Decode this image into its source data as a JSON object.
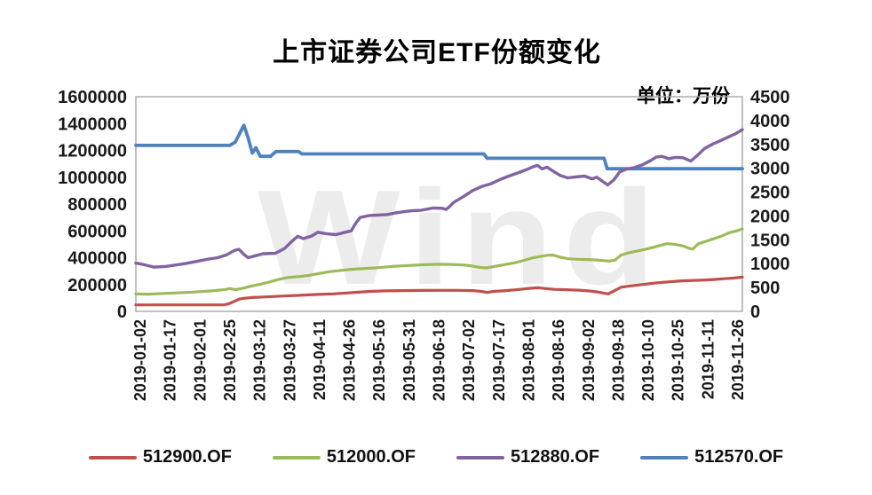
{
  "title": "上市证券公司ETF份额变化",
  "unit_label": "单位：万份",
  "watermark": "Wind",
  "chart_data": {
    "type": "line",
    "title": "上市证券公司ETF份额变化",
    "unit": "万份",
    "grid": false,
    "legend_position": "bottom",
    "x_tick_labels": [
      "2019-01-02",
      "2019-01-17",
      "2019-02-01",
      "2019-02-25",
      "2019-03-12",
      "2019-03-27",
      "2019-04-11",
      "2019-04-26",
      "2019-05-16",
      "2019-05-31",
      "2019-06-18",
      "2019-07-02",
      "2019-07-17",
      "2019-08-01",
      "2019-08-16",
      "2019-09-02",
      "2019-09-18",
      "2019-10-10",
      "2019-10-25",
      "2019-11-11",
      "2019-11-26"
    ],
    "left_axis": {
      "min": 0,
      "max": 1600000,
      "step": 200000,
      "ticks": [
        "0",
        "200000",
        "400000",
        "600000",
        "800000",
        "1000000",
        "1200000",
        "1400000",
        "1600000"
      ]
    },
    "right_axis": {
      "min": 0,
      "max": 4500,
      "step": 500,
      "ticks": [
        "0",
        "500",
        "1000",
        "1500",
        "2000",
        "2500",
        "3000",
        "3500",
        "4000",
        "4500"
      ]
    },
    "series": [
      {
        "name": "512900.OF",
        "color": "#C0504D",
        "axis": "left",
        "draw_order": 1,
        "width": 3.2,
        "points": [
          [
            0,
            48000
          ],
          [
            0.145,
            48000
          ],
          [
            0.153,
            56000
          ],
          [
            0.162,
            74000
          ],
          [
            0.171,
            92000
          ],
          [
            0.179,
            98000
          ],
          [
            0.192,
            103000
          ],
          [
            0.21,
            107000
          ],
          [
            0.24,
            114000
          ],
          [
            0.27,
            120000
          ],
          [
            0.3,
            126000
          ],
          [
            0.325,
            130000
          ],
          [
            0.347,
            137000
          ],
          [
            0.366,
            143000
          ],
          [
            0.386,
            149000
          ],
          [
            0.41,
            153000
          ],
          [
            0.44,
            155000
          ],
          [
            0.47,
            156000
          ],
          [
            0.5,
            157000
          ],
          [
            0.53,
            157000
          ],
          [
            0.556,
            155000
          ],
          [
            0.57,
            149000
          ],
          [
            0.579,
            141000
          ],
          [
            0.59,
            149000
          ],
          [
            0.61,
            155000
          ],
          [
            0.632,
            163000
          ],
          [
            0.65,
            172000
          ],
          [
            0.663,
            176000
          ],
          [
            0.676,
            170000
          ],
          [
            0.69,
            164000
          ],
          [
            0.71,
            161000
          ],
          [
            0.73,
            158000
          ],
          [
            0.748,
            152000
          ],
          [
            0.761,
            145000
          ],
          [
            0.772,
            135000
          ],
          [
            0.779,
            130000
          ],
          [
            0.8,
            180000
          ],
          [
            0.812,
            188000
          ],
          [
            0.83,
            197000
          ],
          [
            0.854,
            210000
          ],
          [
            0.87,
            217000
          ],
          [
            0.89,
            224000
          ],
          [
            0.904,
            228000
          ],
          [
            0.92,
            231000
          ],
          [
            0.94,
            234000
          ],
          [
            0.955,
            238000
          ],
          [
            0.97,
            243000
          ],
          [
            0.985,
            248000
          ],
          [
            1,
            255000
          ]
        ]
      },
      {
        "name": "512000.OF",
        "color": "#9BBB59",
        "axis": "left",
        "draw_order": 2,
        "width": 3.2,
        "points": [
          [
            0,
            130000
          ],
          [
            0.02,
            128000
          ],
          [
            0.05,
            134000
          ],
          [
            0.08,
            140000
          ],
          [
            0.105,
            147000
          ],
          [
            0.13,
            155000
          ],
          [
            0.148,
            163000
          ],
          [
            0.155,
            170000
          ],
          [
            0.165,
            162000
          ],
          [
            0.178,
            174000
          ],
          [
            0.19,
            188000
          ],
          [
            0.205,
            202000
          ],
          [
            0.22,
            218000
          ],
          [
            0.235,
            238000
          ],
          [
            0.25,
            252000
          ],
          [
            0.27,
            260000
          ],
          [
            0.285,
            268000
          ],
          [
            0.3,
            280000
          ],
          [
            0.32,
            296000
          ],
          [
            0.34,
            306000
          ],
          [
            0.36,
            315000
          ],
          [
            0.38,
            320000
          ],
          [
            0.4,
            326000
          ],
          [
            0.425,
            336000
          ],
          [
            0.45,
            342000
          ],
          [
            0.475,
            348000
          ],
          [
            0.5,
            351000
          ],
          [
            0.52,
            350000
          ],
          [
            0.54,
            346000
          ],
          [
            0.555,
            338000
          ],
          [
            0.568,
            327000
          ],
          [
            0.578,
            324000
          ],
          [
            0.59,
            334000
          ],
          [
            0.605,
            346000
          ],
          [
            0.625,
            362000
          ],
          [
            0.64,
            380000
          ],
          [
            0.652,
            396000
          ],
          [
            0.665,
            408000
          ],
          [
            0.678,
            418000
          ],
          [
            0.688,
            420000
          ],
          [
            0.7,
            403000
          ],
          [
            0.713,
            392000
          ],
          [
            0.728,
            388000
          ],
          [
            0.745,
            386000
          ],
          [
            0.76,
            383000
          ],
          [
            0.772,
            378000
          ],
          [
            0.78,
            374000
          ],
          [
            0.79,
            382000
          ],
          [
            0.8,
            420000
          ],
          [
            0.812,
            436000
          ],
          [
            0.825,
            448000
          ],
          [
            0.84,
            462000
          ],
          [
            0.855,
            480000
          ],
          [
            0.868,
            495000
          ],
          [
            0.877,
            505000
          ],
          [
            0.89,
            498000
          ],
          [
            0.902,
            488000
          ],
          [
            0.912,
            470000
          ],
          [
            0.918,
            464000
          ],
          [
            0.928,
            505000
          ],
          [
            0.94,
            522000
          ],
          [
            0.952,
            540000
          ],
          [
            0.965,
            560000
          ],
          [
            0.978,
            585000
          ],
          [
            0.99,
            600000
          ],
          [
            1,
            614000
          ]
        ]
      },
      {
        "name": "512880.OF",
        "color": "#8064A2",
        "axis": "left",
        "draw_order": 4,
        "width": 3.4,
        "points": [
          [
            0,
            360000
          ],
          [
            0.012,
            350000
          ],
          [
            0.03,
            330000
          ],
          [
            0.05,
            335000
          ],
          [
            0.08,
            355000
          ],
          [
            0.1,
            372000
          ],
          [
            0.12,
            390000
          ],
          [
            0.135,
            400000
          ],
          [
            0.15,
            422000
          ],
          [
            0.163,
            455000
          ],
          [
            0.17,
            462000
          ],
          [
            0.178,
            425000
          ],
          [
            0.185,
            400000
          ],
          [
            0.195,
            412000
          ],
          [
            0.21,
            430000
          ],
          [
            0.23,
            433000
          ],
          [
            0.245,
            468000
          ],
          [
            0.258,
            525000
          ],
          [
            0.267,
            560000
          ],
          [
            0.276,
            542000
          ],
          [
            0.29,
            562000
          ],
          [
            0.3,
            590000
          ],
          [
            0.315,
            578000
          ],
          [
            0.33,
            572000
          ],
          [
            0.345,
            590000
          ],
          [
            0.355,
            600000
          ],
          [
            0.363,
            660000
          ],
          [
            0.37,
            700000
          ],
          [
            0.385,
            715000
          ],
          [
            0.4,
            718000
          ],
          [
            0.415,
            722000
          ],
          [
            0.43,
            735000
          ],
          [
            0.44,
            742000
          ],
          [
            0.455,
            750000
          ],
          [
            0.47,
            753000
          ],
          [
            0.49,
            770000
          ],
          [
            0.505,
            768000
          ],
          [
            0.512,
            760000
          ],
          [
            0.525,
            815000
          ],
          [
            0.54,
            855000
          ],
          [
            0.555,
            900000
          ],
          [
            0.57,
            930000
          ],
          [
            0.585,
            950000
          ],
          [
            0.6,
            982000
          ],
          [
            0.615,
            1008000
          ],
          [
            0.63,
            1032000
          ],
          [
            0.645,
            1058000
          ],
          [
            0.655,
            1078000
          ],
          [
            0.662,
            1088000
          ],
          [
            0.67,
            1062000
          ],
          [
            0.678,
            1075000
          ],
          [
            0.688,
            1045000
          ],
          [
            0.7,
            1012000
          ],
          [
            0.712,
            995000
          ],
          [
            0.725,
            1002000
          ],
          [
            0.74,
            1008000
          ],
          [
            0.752,
            988000
          ],
          [
            0.76,
            1000000
          ],
          [
            0.77,
            968000
          ],
          [
            0.778,
            942000
          ],
          [
            0.788,
            980000
          ],
          [
            0.798,
            1040000
          ],
          [
            0.81,
            1062000
          ],
          [
            0.822,
            1072000
          ],
          [
            0.835,
            1092000
          ],
          [
            0.848,
            1122000
          ],
          [
            0.858,
            1150000
          ],
          [
            0.868,
            1155000
          ],
          [
            0.878,
            1138000
          ],
          [
            0.89,
            1148000
          ],
          [
            0.902,
            1145000
          ],
          [
            0.915,
            1120000
          ],
          [
            0.925,
            1160000
          ],
          [
            0.938,
            1215000
          ],
          [
            0.95,
            1245000
          ],
          [
            0.962,
            1268000
          ],
          [
            0.975,
            1295000
          ],
          [
            0.988,
            1322000
          ],
          [
            1,
            1355000
          ]
        ]
      },
      {
        "name": "512570.OF",
        "color": "#4F81BD",
        "axis": "right",
        "draw_order": 3,
        "width": 3.8,
        "points": [
          [
            0,
            3480
          ],
          [
            0.155,
            3480
          ],
          [
            0.164,
            3550
          ],
          [
            0.178,
            3900
          ],
          [
            0.185,
            3640
          ],
          [
            0.192,
            3320
          ],
          [
            0.198,
            3430
          ],
          [
            0.205,
            3250
          ],
          [
            0.222,
            3250
          ],
          [
            0.231,
            3350
          ],
          [
            0.268,
            3350
          ],
          [
            0.274,
            3300
          ],
          [
            0.574,
            3300
          ],
          [
            0.579,
            3210
          ],
          [
            0.772,
            3210
          ],
          [
            0.777,
            2990
          ],
          [
            1,
            2990
          ]
        ]
      }
    ]
  },
  "style": {
    "axis_line_color": "#a6a6a6",
    "tick_label_color": "#1a1a1a"
  }
}
